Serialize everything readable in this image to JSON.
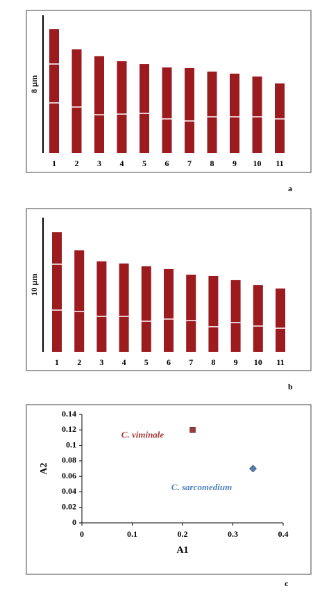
{
  "chart_data": [
    {
      "type": "idiogram",
      "panel_label": "a",
      "color": "#9b1b1f",
      "scale_bar": {
        "label": "8 µm",
        "value": 8
      },
      "categories": [
        "1",
        "2",
        "3",
        "4",
        "5",
        "6",
        "7",
        "8",
        "9",
        "10",
        "11"
      ],
      "values": [
        7.19,
        6.02,
        5.62,
        5.33,
        5.17,
        4.97,
        4.93,
        4.73,
        4.61,
        4.44,
        4.04
      ],
      "constrictions": [
        [
          2.91,
          5.17
        ],
        [
          2.67
        ],
        [
          2.22
        ],
        [
          2.26
        ],
        [
          2.3
        ],
        [
          1.98
        ],
        [
          1.86
        ],
        [
          2.1
        ],
        [
          2.1
        ],
        [
          2.1
        ],
        [
          1.98
        ]
      ]
    },
    {
      "type": "idiogram",
      "panel_label": "b",
      "color": "#9b1b1f",
      "scale_bar": {
        "label": "10 µm",
        "value": 10
      },
      "categories": [
        "1",
        "2",
        "3",
        "4",
        "5",
        "6",
        "7",
        "8",
        "9",
        "10",
        "11"
      ],
      "values": [
        8.91,
        7.56,
        6.74,
        6.58,
        6.37,
        6.17,
        5.75,
        5.65,
        5.34,
        4.97,
        4.72
      ],
      "constrictions": [
        [
          3.11,
          6.53
        ],
        [
          3.01
        ],
        [
          2.64
        ],
        [
          2.64
        ],
        [
          2.28
        ],
        [
          2.44
        ],
        [
          2.33
        ],
        [
          1.87
        ],
        [
          2.18
        ],
        [
          1.92
        ],
        [
          1.76
        ]
      ]
    },
    {
      "type": "scatter",
      "panel_label": "c",
      "xlabel": "A1",
      "ylabel": "A2",
      "xlim": [
        0,
        0.4
      ],
      "xticks": [
        0,
        0.1,
        0.2,
        0.3,
        0.4
      ],
      "ylim": [
        0,
        0.14
      ],
      "yticks": [
        0,
        0.02,
        0.04,
        0.06,
        0.08,
        0.1,
        0.12,
        0.14
      ],
      "series": [
        {
          "name": "C. viminale",
          "color": "#a23b37",
          "marker": "square",
          "x": [
            0.22
          ],
          "values": [
            0.12
          ]
        },
        {
          "name": "C. sarcomedium",
          "color": "#4f81bd",
          "marker": "diamond",
          "x": [
            0.34
          ],
          "values": [
            0.07
          ]
        }
      ]
    }
  ]
}
